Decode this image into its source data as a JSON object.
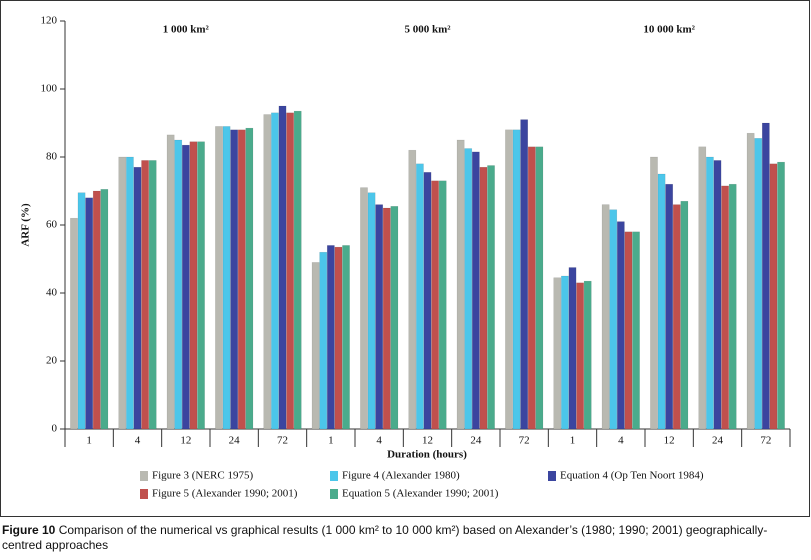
{
  "chart_data": {
    "type": "bar",
    "y_label": "ARF (%)",
    "x_label": "Duration (hours)",
    "annotations": [
      "1 000 km²",
      "5 000 km²",
      "10 000 km²"
    ],
    "categories": [
      "1",
      "4",
      "12",
      "24",
      "72",
      "1",
      "4",
      "12",
      "24",
      "72",
      "1",
      "4",
      "12",
      "24",
      "72"
    ],
    "series": [
      {
        "name": "Figure 3 (NERC 1975)",
        "color": "#b9b9b1",
        "values": [
          62,
          80,
          86.5,
          89,
          92.5,
          49,
          71,
          82,
          85,
          88,
          44.5,
          66,
          80,
          83,
          87
        ]
      },
      {
        "name": "Figure 4 (Alexander 1980)",
        "color": "#4cc6ea",
        "values": [
          69.5,
          80,
          85,
          89,
          93,
          52,
          69.5,
          78,
          82.5,
          88,
          45,
          64.5,
          75,
          80,
          85.5
        ]
      },
      {
        "name": "Equation 4 (Op Ten Noort 1984)",
        "color": "#3b459f",
        "values": [
          68,
          77,
          83.5,
          88,
          95,
          54,
          66,
          75.5,
          81.5,
          91,
          47.5,
          61,
          72,
          79,
          90
        ]
      },
      {
        "name": "Figure 5 (Alexander 1990; 2001)",
        "color": "#c0504d",
        "values": [
          70,
          79,
          84.5,
          88,
          93,
          53.5,
          65,
          73,
          77,
          83,
          43,
          58,
          66,
          71.5,
          78
        ]
      },
      {
        "name": "Equation 5 (Alexander 1990; 2001)",
        "color": "#4aab8c",
        "values": [
          70.5,
          79,
          84.5,
          88.5,
          93.5,
          54,
          65.5,
          73,
          77.5,
          83,
          43.5,
          58,
          67,
          72,
          78.5
        ]
      }
    ],
    "ylim": [
      0,
      120
    ],
    "yticks": [
      0,
      20,
      40,
      60,
      80,
      100,
      120
    ],
    "grid": false,
    "caption_label": "Figure 10",
    "caption": "Comparison of the numerical vs graphical results (1 000 km² to 10 000 km²) based on Alexander’s (1980; 1990; 2001) geographically-centred approaches"
  }
}
